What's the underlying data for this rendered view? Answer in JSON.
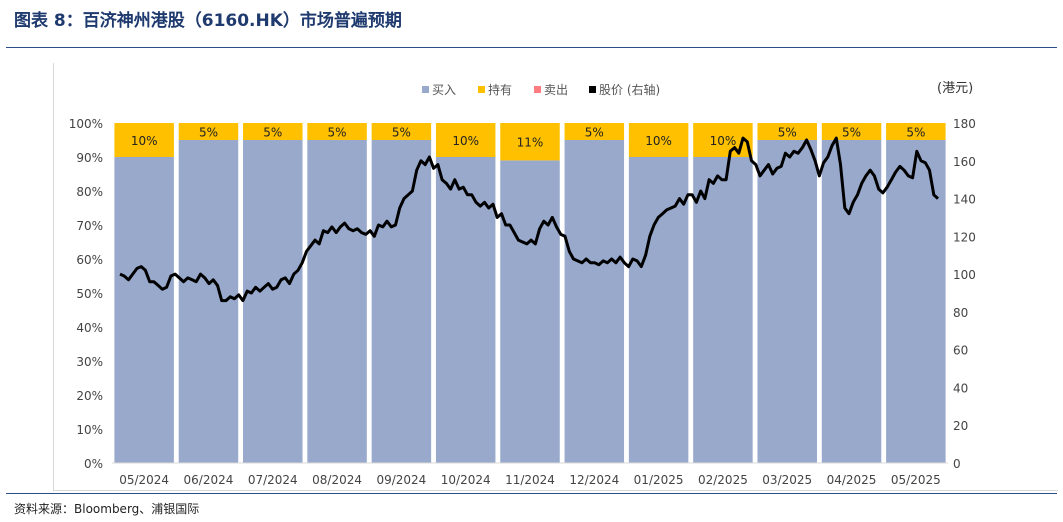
{
  "figure": {
    "title": "图表 8：百济神州港股（6160.HK）市场普遍预期",
    "source": "资料来源：Bloomberg、浦银国际"
  },
  "chart_data": {
    "type": "bar",
    "stacked": true,
    "percent": true,
    "categories": [
      "05/2024",
      "06/2024",
      "07/2024",
      "08/2024",
      "09/2024",
      "10/2024",
      "11/2024",
      "12/2024",
      "01/2025",
      "02/2025",
      "03/2025",
      "04/2025",
      "05/2025"
    ],
    "series": [
      {
        "name": "买入",
        "color": "#98a9cc",
        "values": [
          90,
          95,
          95,
          95,
          95,
          90,
          89,
          95,
          90,
          90,
          95,
          95,
          95
        ]
      },
      {
        "name": "持有",
        "color": "#ffc000",
        "values": [
          10,
          5,
          5,
          5,
          5,
          10,
          11,
          5,
          10,
          10,
          5,
          5,
          5
        ]
      },
      {
        "name": "卖出",
        "color": "#ff7c80",
        "values": [
          0,
          0,
          0,
          0,
          0,
          0,
          0,
          0,
          0,
          0,
          0,
          0,
          0
        ]
      }
    ],
    "hold_labels": [
      "10%",
      "5%",
      "5%",
      "5%",
      "5%",
      "10%",
      "11%",
      "5%",
      "10%",
      "10%",
      "5%",
      "5%",
      "5%"
    ],
    "line_series": {
      "name": "股价 (右轴)",
      "color": "#000000",
      "values": [
        100,
        99,
        97,
        100,
        103,
        104,
        102,
        96,
        96,
        94,
        92,
        93,
        99,
        100,
        98,
        96,
        98,
        97,
        96,
        100,
        98,
        95,
        97,
        94,
        86,
        86,
        88,
        87,
        89,
        86,
        91,
        90,
        93,
        91,
        93,
        95,
        92,
        93,
        97,
        98,
        95,
        100,
        102,
        106,
        112,
        115,
        118,
        116,
        123,
        122,
        125,
        122,
        125,
        127,
        124,
        123,
        124,
        122,
        121,
        123,
        120,
        126,
        125,
        128,
        125,
        126,
        135,
        140,
        142,
        144,
        155,
        160,
        158,
        162,
        156,
        158,
        150,
        148,
        145,
        150,
        145,
        146,
        142,
        142,
        138,
        136,
        138,
        135,
        137,
        130,
        132,
        126,
        126,
        122,
        118,
        117,
        116,
        118,
        116,
        124,
        128,
        126,
        130,
        125,
        121,
        120,
        112,
        108,
        107,
        106,
        108,
        106,
        106,
        105,
        107,
        106,
        108,
        106,
        109,
        106,
        104,
        108,
        107,
        104,
        110,
        120,
        126,
        130,
        132,
        134,
        135,
        136,
        140,
        137,
        142,
        142,
        138,
        144,
        140,
        150,
        148,
        152,
        150,
        150,
        165,
        167,
        164,
        172,
        170,
        160,
        158,
        152,
        155,
        158,
        153,
        156,
        157,
        164,
        162,
        165,
        164,
        167,
        171,
        166,
        160,
        152,
        159,
        162,
        168,
        172,
        158,
        135,
        132,
        138,
        142,
        148,
        152,
        155,
        152,
        145,
        143,
        146,
        150,
        154,
        157,
        155,
        152,
        151,
        165,
        160,
        159,
        155,
        142,
        140
      ],
      "ylim": [
        0,
        180
      ],
      "yticks": [
        0,
        20,
        40,
        60,
        80,
        100,
        120,
        140,
        160,
        180
      ]
    },
    "left_yticks": [
      "0%",
      "10%",
      "20%",
      "30%",
      "40%",
      "50%",
      "60%",
      "70%",
      "80%",
      "90%",
      "100%"
    ],
    "ylim": [
      0,
      100
    ],
    "right_axis_label": "(港元)",
    "legend": [
      {
        "label": "买入",
        "color": "#98a9cc"
      },
      {
        "label": "持有",
        "color": "#ffc000"
      },
      {
        "label": "卖出",
        "color": "#ff7c80"
      },
      {
        "label": "股价 (右轴)",
        "color": "#000000"
      }
    ],
    "legend_position": "top-center"
  }
}
